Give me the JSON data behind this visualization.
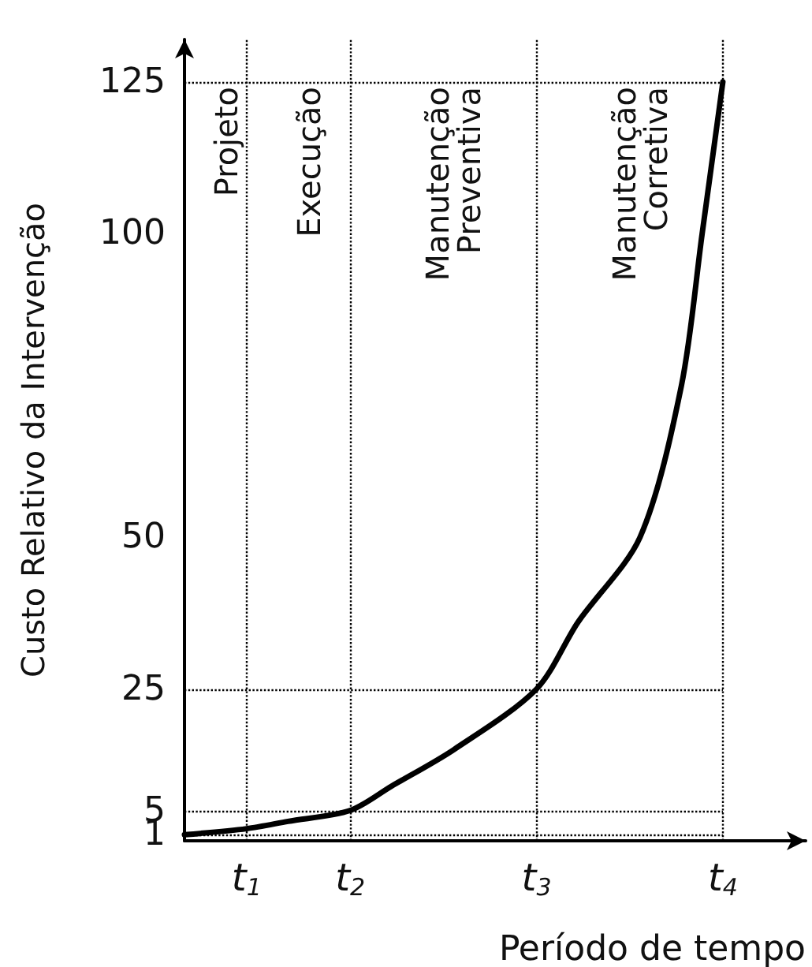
{
  "chart_data": {
    "type": "line",
    "xlabel": "Período de tempo",
    "ylabel": "Custo Relativo da Intervenção",
    "categories": [
      null,
      null,
      null,
      "t$_{1}$",
      null,
      null,
      null,
      null,
      "t$_{2}$",
      null,
      null,
      null,
      null,
      null,
      null,
      null,
      null,
      "t$_{3}$",
      null,
      null,
      null,
      null,
      null,
      null,
      null,
      null,
      "t$_{4}$",
      null,
      null,
      null,
      null
    ],
    "series": [
      {
        "color": "#000000",
        "values": [
          1,
          null,
          null,
          2,
          null,
          3.2,
          null,
          null,
          5,
          null,
          9,
          null,
          null,
          15,
          null,
          null,
          null,
          25,
          null,
          36,
          null,
          null,
          50,
          null,
          75,
          100,
          125,
          null,
          null,
          null,
          null
        ]
      }
    ],
    "ylim": [
      0,
      132
    ],
    "yticks": [
      1,
      5,
      25,
      50,
      100,
      125
    ],
    "ref_lines": [
      {
        "axis": "x",
        "value": "t$_{1}$",
        "line_style": "dotted"
      },
      {
        "axis": "x",
        "value": "t$_{2}$",
        "line_style": "dotted"
      },
      {
        "axis": "x",
        "value": "t$_{3}$",
        "line_style": "dotted"
      },
      {
        "axis": "x",
        "value": "t$_{4}$",
        "line_style": "dotted"
      },
      {
        "axis": "y",
        "value": 1,
        "line_style": "dotted"
      },
      {
        "axis": "y",
        "value": 5,
        "line_style": "dotted"
      },
      {
        "axis": "y",
        "value": 25,
        "line_style": "dotted"
      },
      {
        "axis": "y",
        "value": 125,
        "line_style": "dotted"
      }
    ],
    "annotations": [
      "Projeto",
      "Execução",
      "Manutenção Preventiva",
      "Manutenção Corretiva"
    ],
    "marker": "none",
    "line_style": "solid",
    "grid": false
  }
}
